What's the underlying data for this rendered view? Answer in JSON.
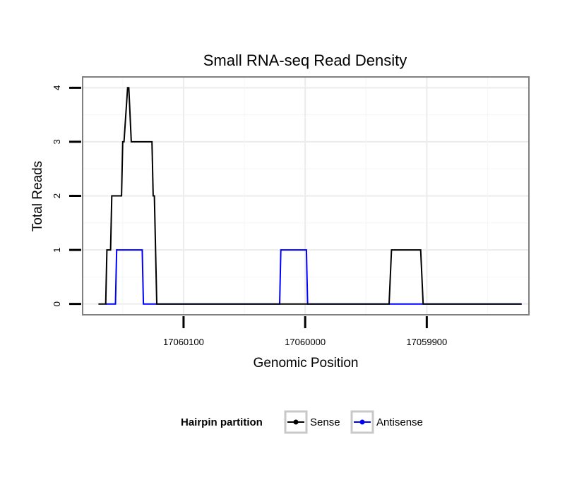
{
  "chart_data": {
    "type": "line",
    "title": "Small RNA-seq Read Density",
    "xlabel": "Genomic Position",
    "ylabel": "Total Reads",
    "x_reversed": true,
    "xlim": [
      17060183,
      17059816
    ],
    "ylim": [
      -0.2,
      4.2
    ],
    "x_ticks": [
      17060100,
      17060000,
      17059900
    ],
    "x_tick_labels": [
      "17060100",
      "17060000",
      "17059900"
    ],
    "y_ticks": [
      0,
      1,
      2,
      3,
      4
    ],
    "y_tick_labels": [
      "0",
      "1",
      "2",
      "3",
      "4"
    ],
    "grid": true,
    "legend": {
      "title": "Hairpin partition",
      "position": "bottom"
    },
    "series": [
      {
        "name": "Sense",
        "color": "#000000",
        "x": [
          17060170,
          17060164,
          17060163,
          17060160,
          17060159,
          17060151,
          17060150,
          17060149,
          17060146,
          17060145,
          17060143,
          17060142,
          17060141,
          17060126,
          17060125,
          17060124,
          17060122,
          17060021,
          17059986,
          17059931,
          17059929,
          17059905,
          17059903,
          17059822
        ],
        "values": [
          0,
          0,
          1,
          1,
          2,
          2,
          3,
          3,
          4,
          4,
          3,
          3,
          3,
          3,
          2,
          2,
          0,
          0,
          0,
          0,
          1,
          1,
          0,
          0
        ]
      },
      {
        "name": "Antisense",
        "color": "#0000ff",
        "x": [
          17060164,
          17060156,
          17060155,
          17060134,
          17060133,
          17060122,
          17060021,
          17060020,
          17059999,
          17059998,
          17059903,
          17059822
        ],
        "values": [
          0,
          0,
          1,
          1,
          0,
          0,
          0,
          1,
          1,
          0,
          0,
          0
        ]
      }
    ]
  }
}
